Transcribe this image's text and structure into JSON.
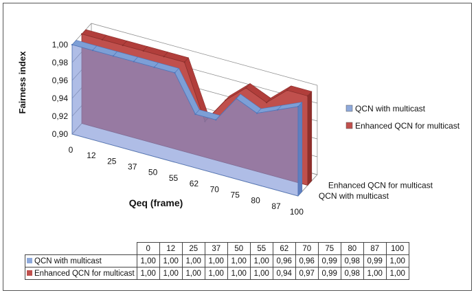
{
  "chart_data": {
    "type": "area",
    "categories": [
      "0",
      "12",
      "25",
      "37",
      "50",
      "55",
      "62",
      "70",
      "75",
      "80",
      "87",
      "100"
    ],
    "series": [
      {
        "name": "QCN with multicast",
        "color": "#8ea9db",
        "values": [
          1.0,
          1.0,
          1.0,
          1.0,
          1.0,
          1.0,
          0.96,
          0.96,
          0.99,
          0.98,
          0.99,
          1.0
        ],
        "labels": [
          "1,00",
          "1,00",
          "1,00",
          "1,00",
          "1,00",
          "1,00",
          "0,96",
          "0,96",
          "0,99",
          "0,98",
          "0,99",
          "1,00"
        ]
      },
      {
        "name": "Enhanced QCN for multicast",
        "color": "#c0504d",
        "values": [
          1.0,
          1.0,
          1.0,
          1.0,
          1.0,
          1.0,
          0.94,
          0.97,
          0.99,
          0.98,
          1.0,
          1.0
        ],
        "labels": [
          "1,00",
          "1,00",
          "1,00",
          "1,00",
          "1,00",
          "1,00",
          "0,94",
          "0,97",
          "0,99",
          "0,98",
          "1,00",
          "1,00"
        ]
      }
    ],
    "ylabel": "Fairness index",
    "xlabel": "Qeq (frame)",
    "ylim": [
      0.9,
      1.0
    ],
    "yticks": [
      "1,00",
      "0,98",
      "0,96",
      "0,94",
      "0,92",
      "0,90"
    ],
    "depth_labels": [
      "Enhanced QCN for multicast",
      "QCN with multicast"
    ],
    "legend_position": "right",
    "has_data_table": true
  }
}
